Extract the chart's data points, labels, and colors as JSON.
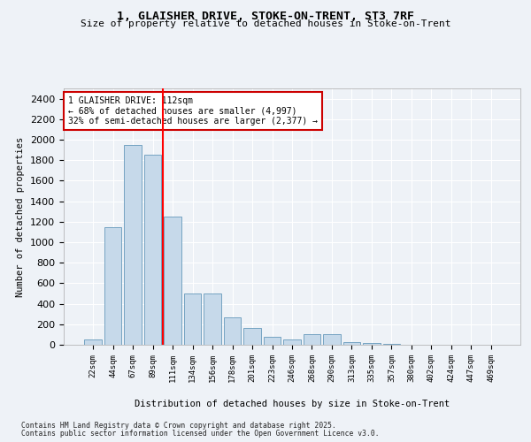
{
  "title_line1": "1, GLAISHER DRIVE, STOKE-ON-TRENT, ST3 7RF",
  "title_line2": "Size of property relative to detached houses in Stoke-on-Trent",
  "xlabel": "Distribution of detached houses by size in Stoke-on-Trent",
  "ylabel": "Number of detached properties",
  "categories": [
    "22sqm",
    "44sqm",
    "67sqm",
    "89sqm",
    "111sqm",
    "134sqm",
    "156sqm",
    "178sqm",
    "201sqm",
    "223sqm",
    "246sqm",
    "268sqm",
    "290sqm",
    "313sqm",
    "335sqm",
    "357sqm",
    "380sqm",
    "402sqm",
    "424sqm",
    "447sqm",
    "469sqm"
  ],
  "values": [
    50,
    1150,
    1950,
    1850,
    1250,
    500,
    500,
    270,
    165,
    75,
    50,
    100,
    100,
    30,
    15,
    5,
    3,
    2,
    1,
    1,
    1
  ],
  "bar_color": "#c6d9ea",
  "bar_edge_color": "#6699bb",
  "red_line_x": 3.5,
  "annotation_text": "1 GLAISHER DRIVE: 112sqm\n← 68% of detached houses are smaller (4,997)\n32% of semi-detached houses are larger (2,377) →",
  "annotation_box_color": "#ffffff",
  "annotation_box_edge": "#cc0000",
  "ylim": [
    0,
    2500
  ],
  "yticks": [
    0,
    200,
    400,
    600,
    800,
    1000,
    1200,
    1400,
    1600,
    1800,
    2000,
    2200,
    2400
  ],
  "background_color": "#eef2f7",
  "grid_color": "#ffffff",
  "footer_line1": "Contains HM Land Registry data © Crown copyright and database right 2025.",
  "footer_line2": "Contains public sector information licensed under the Open Government Licence v3.0."
}
